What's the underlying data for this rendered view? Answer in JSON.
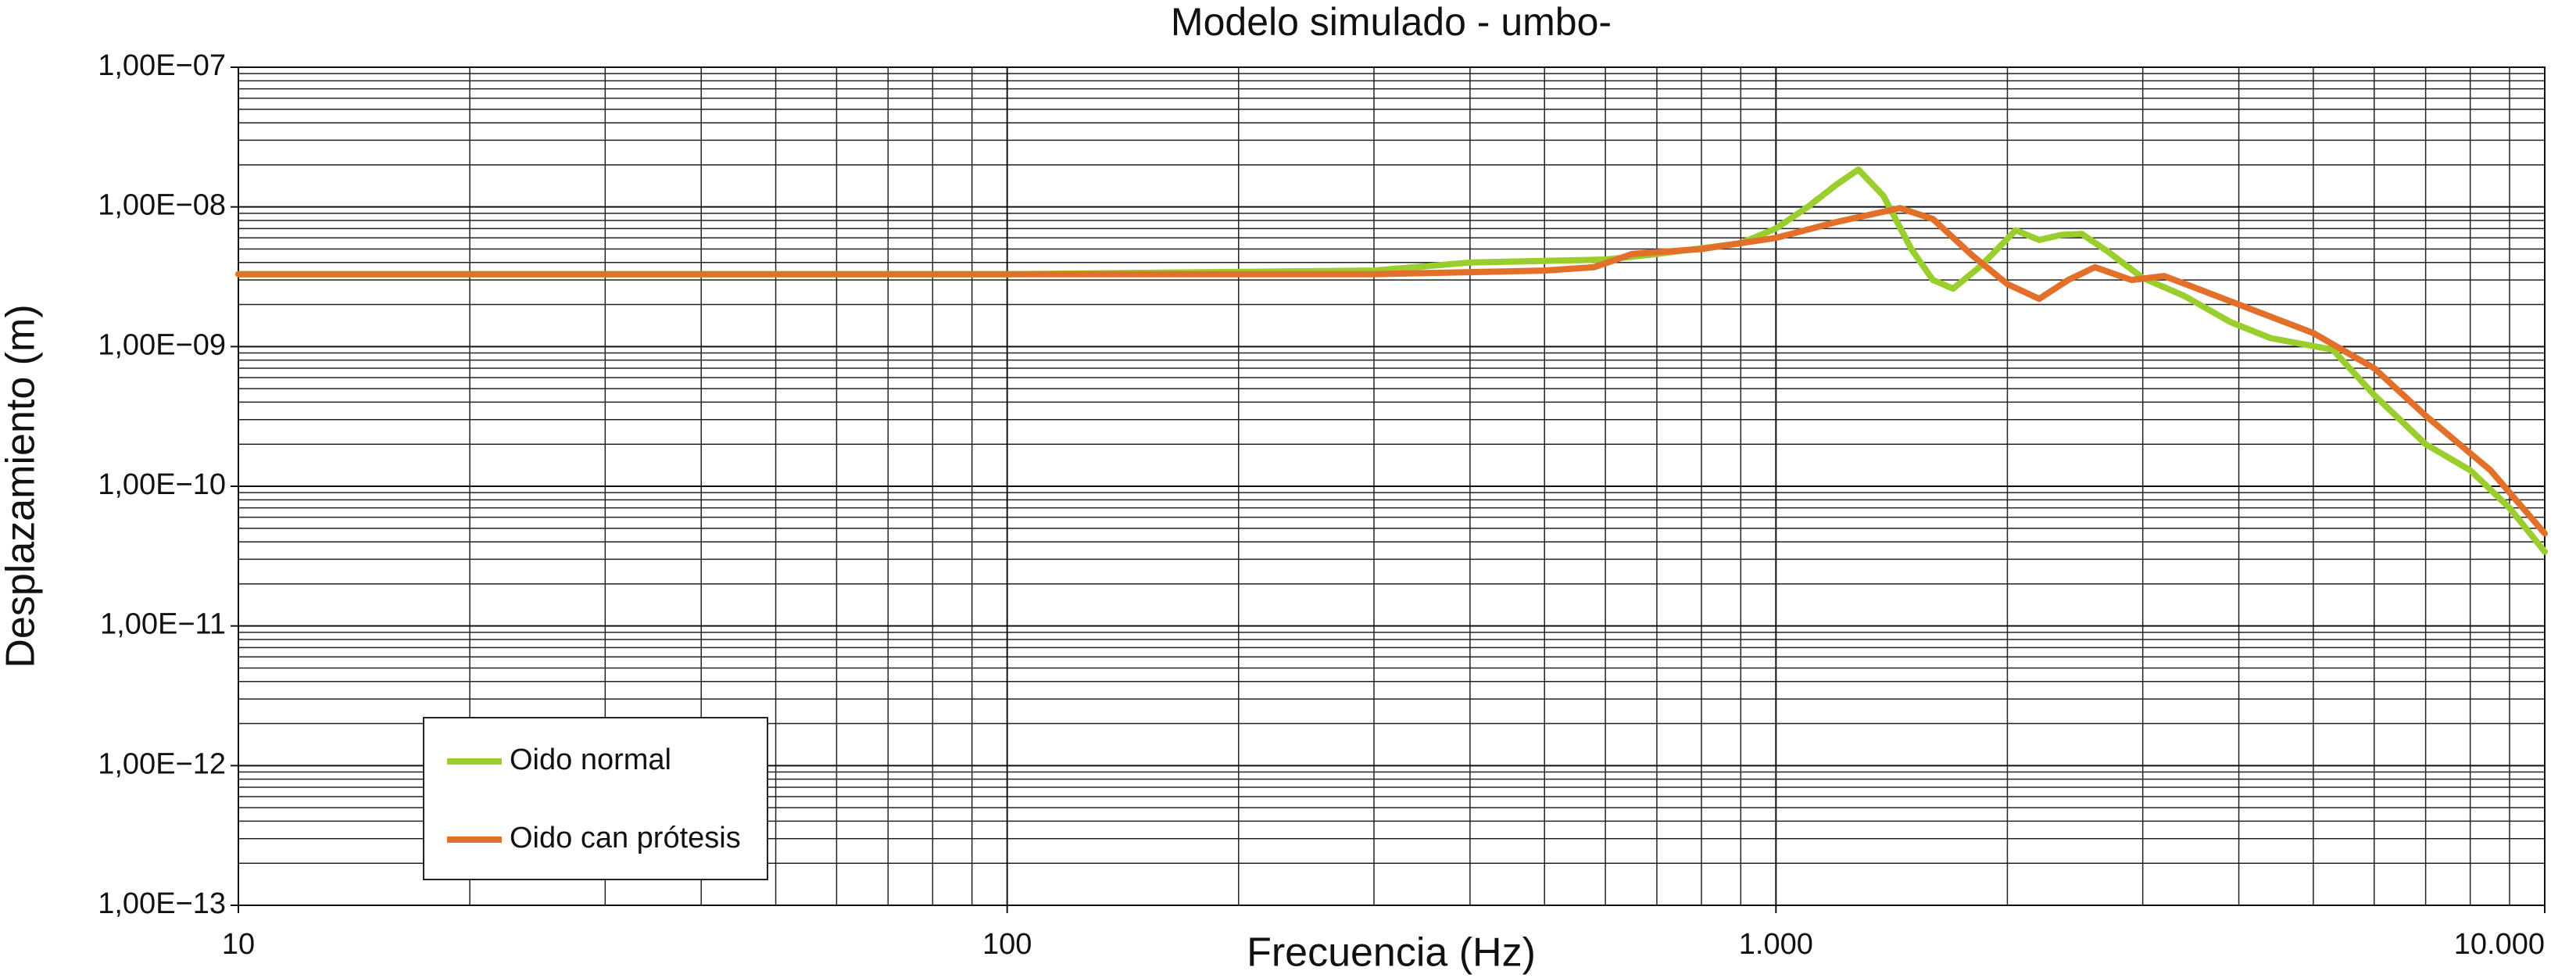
{
  "chart_data": {
    "type": "line",
    "title": "Modelo  simulado - umbo-",
    "x_label": "Frecuencia (Hz)",
    "y_label": "Desplazamiento (m)",
    "log_x": true,
    "log_y": true,
    "grid": true,
    "legend": "lower left",
    "xlim": [
      10,
      10000
    ],
    "ylim": [
      1e-13,
      1e-07
    ],
    "xticks": [
      10,
      100,
      {
        "value": 1000,
        "label": "1.000"
      },
      {
        "value": 10000,
        "label": "10.000"
      }
    ],
    "yticks": [
      {
        "value": 1e-13,
        "label": "1,00E−13"
      },
      {
        "value": 1e-12,
        "label": "1,00E−12"
      },
      {
        "value": 1e-11,
        "label": "1,00E−11"
      },
      {
        "value": 1e-10,
        "label": "1,00E−10"
      },
      {
        "value": 1e-09,
        "label": "1,00E−09"
      },
      {
        "value": 1e-08,
        "label": "1,00E−08"
      },
      {
        "value": 1e-07,
        "label": "1,00E−07"
      }
    ],
    "series": [
      {
        "name": "Oido normal",
        "color": "#9acd2e",
        "x": [
          10,
          100,
          300,
          400,
          600,
          700,
          900,
          1000,
          1100,
          1200,
          1280,
          1380,
          1500,
          1600,
          1700,
          1850,
          2050,
          2200,
          2350,
          2500,
          2700,
          3000,
          3400,
          3900,
          4400,
          5300,
          6000,
          7000,
          8000,
          9000,
          10000
        ],
        "values": [
          3.3e-09,
          3.3e-09,
          3.5e-09,
          4e-09,
          4.2e-09,
          4.6e-09,
          5.5e-09,
          7e-09,
          1e-08,
          1.45e-08,
          1.85e-08,
          1.2e-08,
          5e-09,
          3e-09,
          2.6e-09,
          3.8e-09,
          6.8e-09,
          5.8e-09,
          6.3e-09,
          6.4e-09,
          4.8e-09,
          3.1e-09,
          2.3e-09,
          1.5e-09,
          1.15e-09,
          9.5e-10,
          4.5e-10,
          2e-10,
          1.3e-10,
          7e-11,
          3.4e-11
        ]
      },
      {
        "name": "Oido can prótesis",
        "color": "#e2702a",
        "x": [
          10,
          100,
          300,
          500,
          580,
          650,
          800,
          1000,
          1200,
          1450,
          1600,
          1800,
          2000,
          2200,
          2400,
          2600,
          2900,
          3200,
          3600,
          4000,
          5000,
          6000,
          7000,
          8500,
          10000
        ],
        "values": [
          3.3e-09,
          3.3e-09,
          3.3e-09,
          3.5e-09,
          3.7e-09,
          4.6e-09,
          5e-09,
          6e-09,
          7.8e-09,
          9.8e-09,
          8.2e-09,
          4.5e-09,
          2.8e-09,
          2.2e-09,
          3e-09,
          3.7e-09,
          3e-09,
          3.2e-09,
          2.5e-09,
          2e-09,
          1.25e-09,
          7e-10,
          3.2e-10,
          1.3e-10,
          4.6e-11
        ]
      }
    ]
  }
}
